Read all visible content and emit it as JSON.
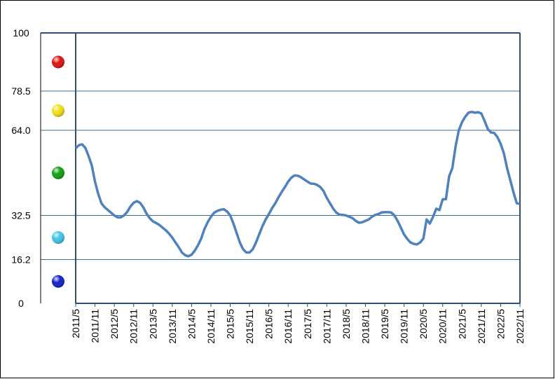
{
  "chart_data": {
    "type": "line",
    "categories": [
      "2011/5",
      null,
      null,
      null,
      null,
      null,
      "2011/11",
      null,
      null,
      null,
      null,
      null,
      "2012/5",
      null,
      null,
      null,
      null,
      null,
      "2012/11",
      null,
      null,
      null,
      null,
      null,
      "2013/5",
      null,
      null,
      null,
      null,
      null,
      "2013/11",
      null,
      null,
      null,
      null,
      null,
      "2014/5",
      null,
      null,
      null,
      null,
      null,
      "2014/11",
      null,
      null,
      null,
      null,
      null,
      "2015/5",
      null,
      null,
      null,
      null,
      null,
      "2015/11",
      null,
      null,
      null,
      null,
      null,
      "2016/5",
      null,
      null,
      null,
      null,
      null,
      "2016/11",
      null,
      null,
      null,
      null,
      null,
      "2017/5",
      null,
      null,
      null,
      null,
      null,
      "2017/11",
      null,
      null,
      null,
      null,
      null,
      "2018/5",
      null,
      null,
      null,
      null,
      null,
      "2018/11",
      null,
      null,
      null,
      null,
      null,
      "2019/5",
      null,
      null,
      null,
      null,
      null,
      "2019/11",
      null,
      null,
      null,
      null,
      null,
      "2020/5",
      null,
      null,
      null,
      null,
      null,
      "2020/11",
      null,
      null,
      null,
      null,
      null,
      "2021/5",
      null,
      null,
      null,
      null,
      null,
      "2021/11",
      null,
      null,
      null,
      null,
      null,
      "2022/5",
      null,
      null,
      null,
      null,
      null,
      "2022/11"
    ],
    "series": [
      {
        "color": "#4f81bd",
        "values": [
          57.3,
          58.5,
          58.8,
          57.5,
          54.5,
          51,
          45,
          40.5,
          37,
          35.5,
          34.5,
          33.5,
          32.5,
          31.8,
          31.8,
          32.5,
          33.8,
          35.8,
          37.2,
          37.8,
          37.2,
          35.5,
          33.2,
          31.5,
          30.3,
          29.7,
          29,
          28,
          27,
          25.8,
          24.3,
          22.5,
          20.8,
          18.8,
          17.8,
          17.4,
          18,
          19.5,
          21.5,
          24,
          27.5,
          30,
          32,
          33.5,
          34.2,
          34.6,
          34.8,
          34,
          32.5,
          29.5,
          26,
          22.5,
          20,
          18.8,
          18.8,
          20,
          22.5,
          25.5,
          28.5,
          31,
          33,
          35.2,
          37,
          39.2,
          41.2,
          43,
          45,
          46.5,
          47.3,
          47.2,
          46.6,
          45.8,
          45,
          44.3,
          44.2,
          43.8,
          43,
          41.5,
          39,
          37,
          35,
          33.5,
          32.8,
          32.7,
          32.5,
          32,
          31.5,
          30.5,
          29.8,
          30,
          30.5,
          31,
          32,
          32.7,
          33,
          33.6,
          33.7,
          33.7,
          33.6,
          32.5,
          30.5,
          28,
          25.5,
          23.8,
          22.5,
          22,
          21.8,
          22.5,
          24,
          31,
          29.5,
          32,
          35,
          34.5,
          38.5,
          38.5,
          47,
          50,
          58,
          64,
          67,
          69,
          70.5,
          70.8,
          70.5,
          70.7,
          70.2,
          67.5,
          64.5,
          63.2,
          63,
          61.5,
          59,
          55.5,
          50,
          45.5,
          41,
          37,
          36.8
        ]
      }
    ],
    "ylim": [
      0,
      100
    ],
    "yticks": [
      0,
      16.2,
      32.5,
      {
        "value": 64,
        "label": "64.0"
      },
      78.5,
      100
    ],
    "grid": true,
    "zone_colors": [
      "#1020c8",
      "#40c4e8",
      "#10a010",
      "#f0e010",
      "#e01010"
    ]
  }
}
